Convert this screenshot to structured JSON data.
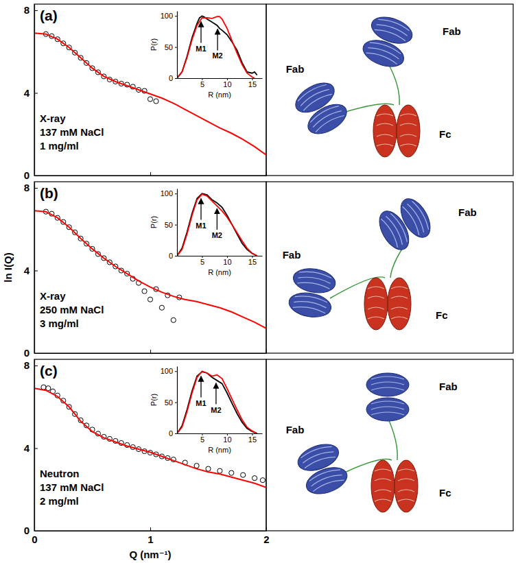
{
  "chart_data": [
    {
      "type": "scatter",
      "panel_label": "(a)",
      "annotations": [
        "X-ray",
        "137 mM NaCl",
        "1 mg/ml"
      ],
      "xlim": [
        0,
        2
      ],
      "ylim": [
        0,
        8.3
      ],
      "xticks": [
        0,
        1,
        2
      ],
      "yticks": [
        0,
        4,
        8
      ],
      "tick_labels": "y",
      "series": [
        {
          "type": "scatter",
          "marker": "circle",
          "color": "#000000",
          "x": [
            0.1,
            0.15,
            0.2,
            0.25,
            0.3,
            0.35,
            0.4,
            0.45,
            0.5,
            0.55,
            0.6,
            0.65,
            0.7,
            0.75,
            0.8,
            0.85,
            0.9,
            0.95,
            1.0,
            1.05
          ],
          "values": [
            6.85,
            6.75,
            6.6,
            6.4,
            6.2,
            5.95,
            5.7,
            5.45,
            5.2,
            5.0,
            4.8,
            4.65,
            4.55,
            4.45,
            4.4,
            4.3,
            4.15,
            4.1,
            3.7,
            3.6
          ]
        },
        {
          "type": "line",
          "color": "#ff0000",
          "x": [
            0,
            0.1,
            0.2,
            0.3,
            0.4,
            0.5,
            0.6,
            0.7,
            0.8,
            0.9,
            1.0,
            1.1,
            1.2,
            1.3,
            1.4,
            1.5,
            1.6,
            1.7,
            1.8,
            1.9,
            2.0
          ],
          "values": [
            6.9,
            6.85,
            6.6,
            6.2,
            5.7,
            5.2,
            4.8,
            4.55,
            4.35,
            4.15,
            3.95,
            3.75,
            3.5,
            3.2,
            2.9,
            2.6,
            2.3,
            2.05,
            1.75,
            1.4,
            1.0
          ]
        }
      ],
      "inset": {
        "type": "line",
        "x_label": "R (nm)",
        "y_label": "P(r)",
        "xlim": [
          0,
          17
        ],
        "ylim": [
          0,
          108
        ],
        "xticks": [
          5,
          10,
          15
        ],
        "yticks": [
          0,
          50,
          100
        ],
        "series": [
          {
            "color": "#000000",
            "x": [
              0,
              1,
              2,
              3,
              4,
              4.5,
              5,
              5.5,
              6,
              7,
              8,
              8.5,
              9,
              10,
              11,
              12,
              13,
              14,
              15,
              15.5,
              16
            ],
            "values": [
              0,
              10,
              35,
              65,
              88,
              97,
              100,
              98,
              95,
              90,
              85,
              80,
              77,
              70,
              58,
              45,
              25,
              10,
              8,
              10,
              5
            ]
          },
          {
            "color": "#ff0000",
            "x": [
              0,
              1,
              2,
              3,
              4,
              5,
              6,
              7,
              8,
              8.5,
              9,
              10,
              11,
              12,
              13,
              14,
              15,
              15.5
            ],
            "values": [
              0,
              10,
              33,
              62,
              85,
              97,
              97,
              96,
              99,
              99,
              95,
              80,
              60,
              40,
              22,
              8,
              2,
              0
            ]
          }
        ],
        "annotations": [
          {
            "text": "M1",
            "x": 4.8,
            "y": 92
          },
          {
            "text": "M2",
            "x": 8.1,
            "y": 80
          }
        ]
      },
      "model_labels": [
        "Fab",
        "Fab",
        "Fc"
      ]
    },
    {
      "type": "scatter",
      "panel_label": "(b)",
      "annotations": [
        "X-ray",
        "250 mM NaCl",
        "3 mg/ml"
      ],
      "y_label": "ln I(Q)",
      "xlim": [
        0,
        2
      ],
      "ylim": [
        0,
        8.3
      ],
      "xticks": [
        0,
        1,
        2
      ],
      "yticks": [
        0,
        4,
        8
      ],
      "tick_labels": "y",
      "series": [
        {
          "type": "scatter",
          "marker": "circle",
          "color": "#000000",
          "x": [
            0.1,
            0.15,
            0.2,
            0.25,
            0.3,
            0.35,
            0.4,
            0.45,
            0.5,
            0.55,
            0.6,
            0.65,
            0.7,
            0.75,
            0.8,
            0.85,
            0.9,
            0.95,
            1.0,
            1.05,
            1.1,
            1.15,
            1.2,
            1.25
          ],
          "values": [
            6.85,
            6.75,
            6.55,
            6.35,
            6.1,
            5.85,
            5.55,
            5.3,
            5.05,
            4.8,
            4.6,
            4.4,
            4.2,
            4.0,
            3.85,
            3.6,
            3.4,
            3.0,
            2.6,
            3.1,
            2.2,
            2.8,
            1.6,
            2.7
          ]
        },
        {
          "type": "line",
          "color": "#ff0000",
          "x": [
            0,
            0.1,
            0.2,
            0.3,
            0.4,
            0.5,
            0.6,
            0.7,
            0.8,
            0.9,
            1.0,
            1.1,
            1.2,
            1.3,
            1.4,
            1.5,
            1.6,
            1.7,
            1.8,
            1.9,
            2.0
          ],
          "values": [
            6.9,
            6.85,
            6.55,
            6.1,
            5.55,
            5.05,
            4.6,
            4.2,
            3.85,
            3.5,
            3.2,
            2.95,
            2.75,
            2.6,
            2.5,
            2.35,
            2.2,
            2.0,
            1.75,
            1.5,
            1.2
          ]
        }
      ],
      "inset": {
        "type": "line",
        "x_label": "R (nm)",
        "y_label": "P(r)",
        "xlim": [
          0,
          17
        ],
        "ylim": [
          0,
          108
        ],
        "xticks": [
          5,
          10,
          15
        ],
        "yticks": [
          0,
          50,
          100
        ],
        "series": [
          {
            "color": "#000000",
            "x": [
              0,
              1,
              2,
              3,
              4,
              5,
              6,
              7,
              8,
              9,
              10,
              11,
              12,
              13,
              14,
              15,
              16
            ],
            "values": [
              0,
              12,
              38,
              68,
              92,
              100,
              98,
              90,
              85,
              78,
              65,
              50,
              35,
              20,
              10,
              4,
              0
            ]
          },
          {
            "color": "#ff0000",
            "x": [
              0,
              1,
              2,
              3,
              4,
              5,
              6,
              7,
              8,
              9,
              10,
              11,
              12,
              13,
              14,
              15,
              16
            ],
            "values": [
              0,
              10,
              35,
              65,
              90,
              99,
              96,
              88,
              80,
              72,
              62,
              50,
              37,
              24,
              12,
              4,
              0
            ]
          }
        ],
        "annotations": [
          {
            "text": "M1",
            "x": 4.8,
            "y": 93
          },
          {
            "text": "M2",
            "x": 8.0,
            "y": 77
          }
        ]
      },
      "model_labels": [
        "Fab",
        "Fab",
        "Fc"
      ]
    },
    {
      "type": "scatter",
      "panel_label": "(c)",
      "annotations": [
        "Neutron",
        "137 mM NaCl",
        "2 mg/ml"
      ],
      "x_label": "Q (nm⁻¹)",
      "xlim": [
        0,
        2
      ],
      "ylim": [
        0,
        8.3
      ],
      "xticks": [
        0,
        1,
        2
      ],
      "yticks": [
        0,
        4,
        8
      ],
      "series": [
        {
          "type": "scatter",
          "marker": "circle",
          "color": "#000000",
          "x": [
            0.08,
            0.12,
            0.16,
            0.2,
            0.25,
            0.3,
            0.35,
            0.4,
            0.45,
            0.5,
            0.55,
            0.6,
            0.65,
            0.7,
            0.75,
            0.8,
            0.85,
            0.9,
            0.95,
            1.0,
            1.05,
            1.1,
            1.15,
            1.2,
            1.3,
            1.4,
            1.5,
            1.6,
            1.7,
            1.8,
            1.9,
            1.97
          ],
          "values": [
            6.95,
            6.9,
            6.75,
            6.55,
            6.3,
            6.0,
            5.65,
            5.35,
            5.1,
            4.9,
            4.7,
            4.55,
            4.45,
            4.35,
            4.25,
            4.15,
            4.05,
            3.95,
            3.85,
            3.78,
            3.7,
            3.6,
            3.52,
            3.45,
            3.3,
            3.15,
            3.0,
            2.9,
            2.8,
            2.7,
            2.55,
            2.45
          ]
        },
        {
          "type": "line",
          "color": "#ff0000",
          "x": [
            0,
            0.1,
            0.2,
            0.3,
            0.4,
            0.5,
            0.6,
            0.7,
            0.8,
            0.9,
            1.0,
            1.1,
            1.2,
            1.3,
            1.4,
            1.5,
            1.6,
            1.7,
            1.8,
            1.9,
            2.0
          ],
          "values": [
            6.9,
            6.8,
            6.5,
            6.0,
            5.3,
            4.8,
            4.5,
            4.3,
            4.1,
            3.95,
            3.8,
            3.6,
            3.4,
            3.2,
            3.0,
            2.85,
            2.75,
            2.6,
            2.45,
            2.3,
            2.1
          ]
        }
      ],
      "inset": {
        "type": "line",
        "x_label": "R (nm)",
        "y_label": "P(r)",
        "xlim": [
          0,
          17
        ],
        "ylim": [
          0,
          108
        ],
        "xticks": [
          5,
          10,
          15
        ],
        "yticks": [
          0,
          50,
          100
        ],
        "series": [
          {
            "color": "#000000",
            "x": [
              0,
              1,
              2,
              3,
              4,
              5,
              6,
              7,
              8,
              9,
              10,
              11,
              12,
              13,
              14,
              15,
              16
            ],
            "values": [
              0,
              12,
              38,
              68,
              92,
              99,
              97,
              90,
              85,
              80,
              65,
              48,
              32,
              18,
              8,
              3,
              0
            ]
          },
          {
            "color": "#ff0000",
            "x": [
              0,
              1,
              2,
              3,
              4,
              5,
              6,
              7,
              7.5,
              8,
              9,
              10,
              11,
              12,
              13,
              14,
              15,
              16
            ],
            "values": [
              0,
              10,
              35,
              65,
              90,
              100,
              97,
              92,
              93,
              94,
              88,
              72,
              55,
              38,
              22,
              10,
              4,
              0
            ]
          }
        ],
        "annotations": [
          {
            "text": "M1",
            "x": 4.8,
            "y": 93
          },
          {
            "text": "M2",
            "x": 7.8,
            "y": 82
          }
        ]
      },
      "model_labels": [
        "Fab",
        "Fab",
        "Fc"
      ]
    }
  ]
}
